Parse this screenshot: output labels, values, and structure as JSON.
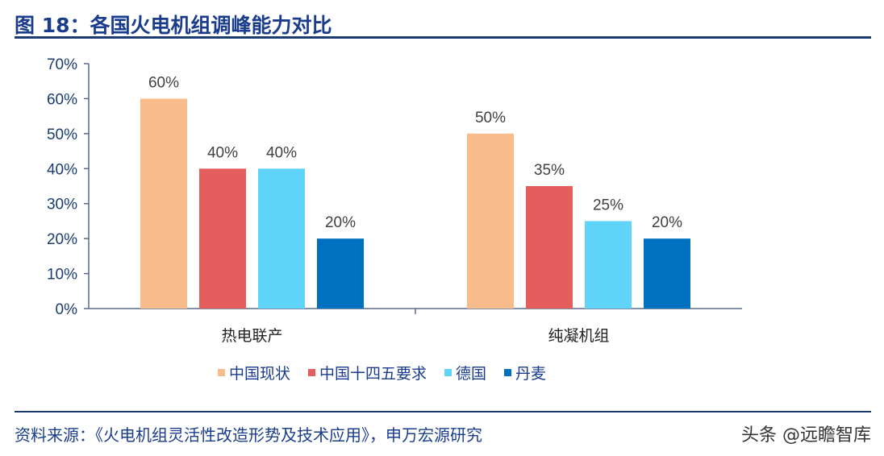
{
  "title": "图 18：各国火电机组调峰能力对比",
  "source": "资料来源：《火电机组灵活性改造形势及技术应用》，申万宏源研究",
  "watermark": "头条 @远瞻智库",
  "chart_data": {
    "type": "bar",
    "categories": [
      "热电联产",
      "纯凝机组"
    ],
    "series": [
      {
        "name": "中国现状",
        "values": [
          60,
          50
        ],
        "color": "#F8BC8C"
      },
      {
        "name": "中国十四五要求",
        "values": [
          40,
          35
        ],
        "color": "#E55E5E"
      },
      {
        "name": "德国",
        "values": [
          40,
          25
        ],
        "color": "#5FD3F8"
      },
      {
        "name": "丹麦",
        "values": [
          20,
          20
        ],
        "color": "#0070C0"
      }
    ],
    "ylim": [
      0,
      70
    ],
    "yticks": [
      "0%",
      "10%",
      "20%",
      "30%",
      "40%",
      "50%",
      "60%",
      "70%"
    ],
    "value_suffix": "%",
    "grid": false,
    "legend_position": "bottom"
  }
}
